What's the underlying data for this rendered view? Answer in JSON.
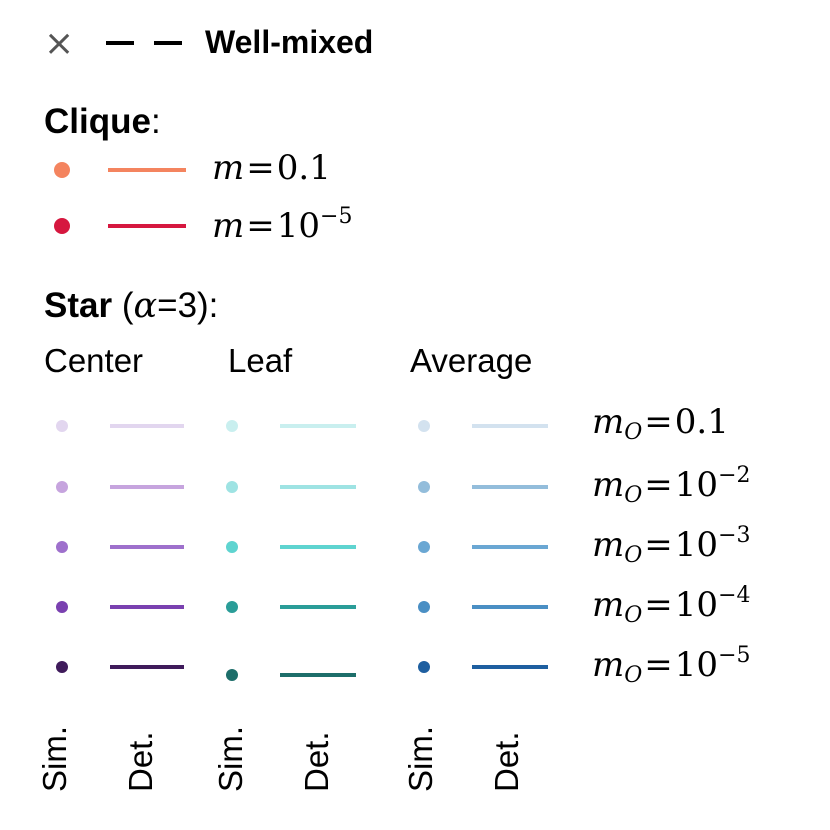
{
  "wellmixed": {
    "sim_marker": "×",
    "label": "Well-mixed"
  },
  "clique": {
    "title": "Clique",
    "title_suffix": ":",
    "rows": [
      {
        "var": "m",
        "eq": "=",
        "value": "0.1",
        "exp": "",
        "color": "#f4845f"
      },
      {
        "var": "m",
        "eq": "=",
        "value": "10",
        "exp": "−5",
        "color": "#d6173f"
      }
    ]
  },
  "star": {
    "title": "Star",
    "param_open": " (",
    "param_symbol": "α",
    "param_rest": "=3):",
    "groups": [
      {
        "label": "Center",
        "colors": [
          "#e2d6ef",
          "#c6a4de",
          "#9e70cc",
          "#7a41b0",
          "#3f1b5b"
        ]
      },
      {
        "label": "Leaf",
        "colors": [
          "#c9efef",
          "#9ee3e3",
          "#5fd4d0",
          "#2a9d98",
          "#1d6e6a"
        ]
      },
      {
        "label": "Average",
        "colors": [
          "#d3e2ef",
          "#93bddb",
          "#6aa7d3",
          "#4a8fc4",
          "#1e5fa0"
        ]
      }
    ],
    "rows": [
      {
        "var": "m",
        "sub": "O",
        "eq": "=",
        "value": "0.1",
        "exp": ""
      },
      {
        "var": "m",
        "sub": "O",
        "eq": "=",
        "value": "10",
        "exp": "−2"
      },
      {
        "var": "m",
        "sub": "O",
        "eq": "=",
        "value": "10",
        "exp": "−3"
      },
      {
        "var": "m",
        "sub": "O",
        "eq": "=",
        "value": "10",
        "exp": "−4"
      },
      {
        "var": "m",
        "sub": "O",
        "eq": "=",
        "value": "10",
        "exp": "−5"
      }
    ]
  },
  "column_labels": {
    "sim": "Sim.",
    "det": "Det."
  }
}
